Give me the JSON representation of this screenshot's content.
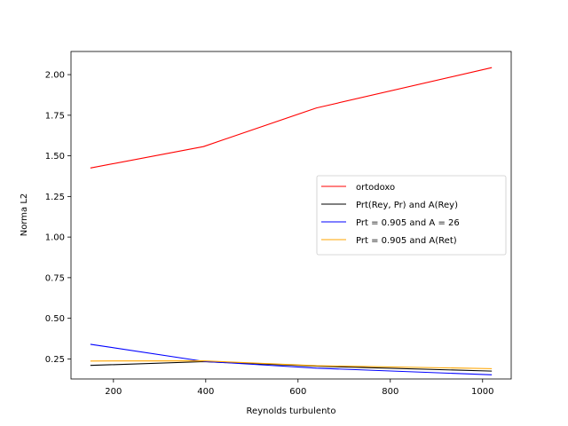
{
  "chart_data": {
    "type": "line",
    "title": "",
    "xlabel": "Reynolds turbulento",
    "ylabel": "Norma L2",
    "xlim": [
      108,
      1062
    ],
    "ylim": [
      0.1265,
      2.1425
    ],
    "xticks": [
      200,
      400,
      600,
      800,
      1000
    ],
    "yticks": [
      0.25,
      0.5,
      0.75,
      1.0,
      1.25,
      1.5,
      1.75,
      2.0
    ],
    "xtick_labels": [
      "200",
      "400",
      "600",
      "800",
      "1000"
    ],
    "ytick_labels": [
      "0.25",
      "0.50",
      "0.75",
      "1.00",
      "1.25",
      "1.50",
      "1.75",
      "2.00"
    ],
    "legend_position": "center-right",
    "grid": false,
    "series": [
      {
        "name": "ortodoxo",
        "color": "#ff0000",
        "x": [
          150,
          395,
          640,
          1020
        ],
        "y": [
          1.425,
          1.557,
          1.795,
          2.043
        ]
      },
      {
        "name": "Prt(Rey, Pr) and A(Rey)",
        "color": "#000000",
        "x": [
          150,
          395,
          640,
          1020
        ],
        "y": [
          0.21,
          0.233,
          0.205,
          0.175
        ]
      },
      {
        "name": "Prt = 0.905 and A = 26",
        "color": "#0000ff",
        "x": [
          150,
          395,
          640,
          1020
        ],
        "y": [
          0.34,
          0.235,
          0.193,
          0.152
        ]
      },
      {
        "name": "Prt = 0.905 and A(Ret)",
        "color": "#ffa500",
        "x": [
          150,
          395,
          640,
          1020
        ],
        "y": [
          0.237,
          0.238,
          0.208,
          0.19
        ]
      }
    ]
  }
}
